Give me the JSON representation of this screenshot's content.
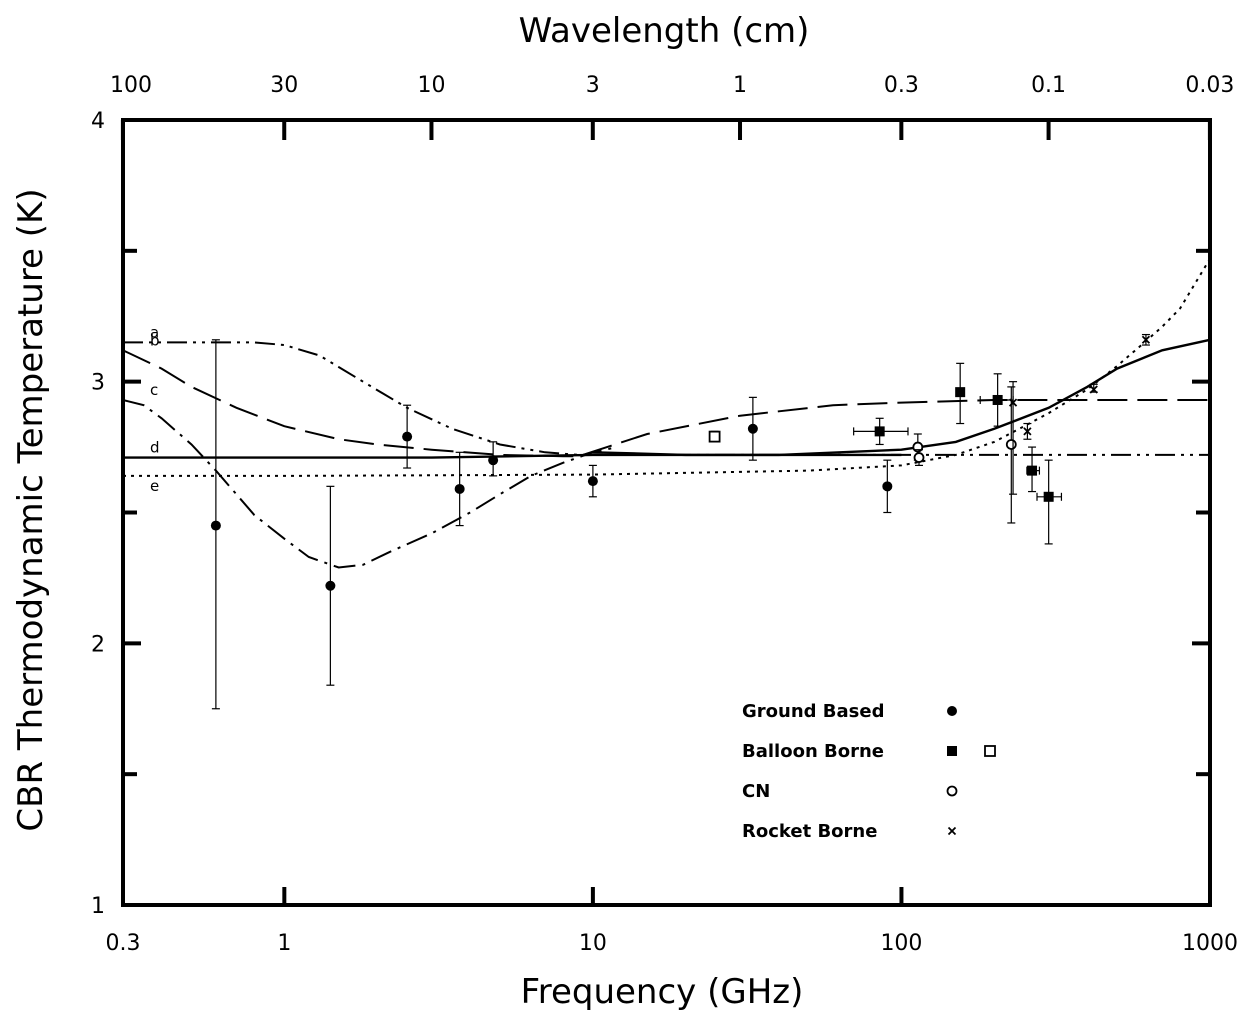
{
  "chart_data": {
    "type": "scatter",
    "xlabel": "Frequency (GHz)",
    "x2label": "Wavelength (cm)",
    "ylabel": "CBR Thermodynamic Temperature (K)",
    "x_scale": "log",
    "xlim": [
      0.3,
      1000
    ],
    "ylim": [
      1,
      4
    ],
    "x_ticks": [
      0.3,
      1,
      10,
      100,
      1000
    ],
    "x_tick_labels": [
      "0.3",
      "1",
      "10",
      "100",
      "1000"
    ],
    "x2_ticks_cm": [
      100,
      30,
      10,
      3,
      1,
      0.3,
      0.1,
      0.03
    ],
    "x2_tick_labels": [
      "100",
      "30",
      "10",
      "3",
      "1",
      "0.3",
      "0.1",
      "0.03"
    ],
    "y_ticks": [
      1,
      2,
      3,
      4
    ],
    "y_tick_labels": [
      "1",
      "2",
      "3",
      "4"
    ],
    "grid": false,
    "legend_position": "bottom-right",
    "legend": [
      {
        "label": "Ground Based",
        "symbols": [
          "filled-circle"
        ]
      },
      {
        "label": "Balloon Borne",
        "symbols": [
          "filled-square",
          "open-square"
        ]
      },
      {
        "label": "CN",
        "symbols": [
          "open-circle"
        ]
      },
      {
        "label": "Rocket Borne",
        "symbols": [
          "cross"
        ]
      }
    ],
    "curves": [
      {
        "label": "a",
        "style": "dash-dot-dot",
        "x": [
          0.3,
          0.4,
          0.6,
          0.8,
          1.0,
          1.3,
          1.8,
          2.5,
          3.5,
          5,
          7,
          9,
          12,
          20,
          50,
          200,
          1000
        ],
        "y": [
          3.15,
          3.15,
          3.15,
          3.15,
          3.14,
          3.1,
          3.0,
          2.9,
          2.82,
          2.76,
          2.73,
          2.72,
          2.72,
          2.72,
          2.72,
          2.72,
          2.72
        ]
      },
      {
        "label": "b",
        "style": "long-dash",
        "x": [
          0.3,
          0.4,
          0.5,
          0.7,
          1.0,
          1.5,
          2.0,
          3.0,
          5,
          8,
          9,
          15,
          30,
          60,
          100,
          200,
          400,
          1000
        ],
        "y": [
          3.12,
          3.05,
          2.98,
          2.9,
          2.83,
          2.78,
          2.76,
          2.74,
          2.72,
          2.715,
          2.715,
          2.8,
          2.87,
          2.91,
          2.92,
          2.93,
          2.93,
          2.93
        ]
      },
      {
        "label": "c",
        "style": "dash-dot",
        "x": [
          0.3,
          0.35,
          0.4,
          0.5,
          0.6,
          0.8,
          1.0,
          1.2,
          1.5,
          1.8,
          2.2,
          3,
          4,
          5,
          6.3,
          8,
          10,
          12
        ],
        "y": [
          2.93,
          2.91,
          2.86,
          2.76,
          2.66,
          2.49,
          2.4,
          2.33,
          2.29,
          2.3,
          2.35,
          2.42,
          2.5,
          2.57,
          2.64,
          2.69,
          2.73,
          2.75
        ]
      },
      {
        "label": "",
        "style": "solid",
        "x": [
          10,
          20,
          40,
          100,
          150,
          200,
          300,
          400,
          500,
          700,
          1000
        ],
        "y": [
          2.73,
          2.72,
          2.72,
          2.74,
          2.77,
          2.82,
          2.9,
          2.98,
          3.05,
          3.12,
          3.16
        ]
      },
      {
        "label": "d",
        "style": "solid",
        "x": [
          0.3,
          1,
          3,
          10,
          30,
          100
        ],
        "y": [
          2.71,
          2.71,
          2.71,
          2.72,
          2.72,
          2.72
        ]
      },
      {
        "label": "e",
        "style": "dotted",
        "x": [
          0.3,
          1,
          10,
          50,
          100,
          150,
          200,
          250,
          300,
          400,
          500,
          600,
          700,
          800,
          1000
        ],
        "y": [
          2.64,
          2.64,
          2.645,
          2.66,
          2.68,
          2.72,
          2.77,
          2.83,
          2.88,
          2.97,
          3.06,
          3.14,
          3.21,
          3.28,
          3.47
        ]
      }
    ],
    "points": [
      {
        "series": "Ground Based",
        "marker": "filled-circle",
        "x": 0.6,
        "y": 2.45,
        "yerr_low": 1.75,
        "yerr_high": 3.16
      },
      {
        "series": "Ground Based",
        "marker": "filled-circle",
        "x": 1.41,
        "y": 2.22,
        "yerr_low": 1.84,
        "yerr_high": 2.6
      },
      {
        "series": "Ground Based",
        "marker": "filled-circle",
        "x": 2.5,
        "y": 2.79,
        "yerr_low": 2.67,
        "yerr_high": 2.91
      },
      {
        "series": "Ground Based",
        "marker": "filled-circle",
        "x": 3.7,
        "y": 2.59,
        "yerr_low": 2.45,
        "yerr_high": 2.73
      },
      {
        "series": "Ground Based",
        "marker": "filled-circle",
        "x": 4.75,
        "y": 2.7,
        "yerr_low": 2.64,
        "yerr_high": 2.77
      },
      {
        "series": "Ground Based",
        "marker": "filled-circle",
        "x": 10,
        "y": 2.62,
        "yerr_low": 2.56,
        "yerr_high": 2.68
      },
      {
        "series": "Ground Based",
        "marker": "filled-circle",
        "x": 33,
        "y": 2.82,
        "yerr_low": 2.7,
        "yerr_high": 2.94
      },
      {
        "series": "Ground Based",
        "marker": "filled-circle",
        "x": 90,
        "y": 2.6,
        "yerr_low": 2.5,
        "yerr_high": 2.7
      },
      {
        "series": "Balloon Borne",
        "marker": "open-square",
        "x": 24.8,
        "y": 2.79,
        "yerr_low": 2.77,
        "yerr_high": 2.81
      },
      {
        "series": "Balloon Borne",
        "marker": "filled-square",
        "x": 85,
        "y": 2.81,
        "yerr_low": 2.76,
        "yerr_high": 2.86,
        "xerr_low": 70,
        "xerr_high": 105
      },
      {
        "series": "Balloon Borne",
        "marker": "filled-square",
        "x": 155,
        "y": 2.96,
        "yerr_low": 2.84,
        "yerr_high": 3.07
      },
      {
        "series": "Balloon Borne",
        "marker": "filled-square",
        "x": 205,
        "y": 2.93,
        "yerr_low": 2.83,
        "yerr_high": 3.03,
        "xerr_low": 180,
        "xerr_high": 230
      },
      {
        "series": "Balloon Borne",
        "marker": "filled-square",
        "x": 265,
        "y": 2.66,
        "yerr_low": 2.58,
        "yerr_high": 2.75,
        "xerr_low": 255,
        "xerr_high": 280
      },
      {
        "series": "Balloon Borne",
        "marker": "filled-square",
        "x": 300,
        "y": 2.56,
        "yerr_low": 2.38,
        "yerr_high": 2.7,
        "xerr_low": 275,
        "xerr_high": 330
      },
      {
        "series": "CN",
        "marker": "open-circle",
        "x": 113,
        "y": 2.75,
        "yerr_low": 2.7,
        "yerr_high": 2.8
      },
      {
        "series": "CN",
        "marker": "open-circle",
        "x": 114,
        "y": 2.71,
        "yerr_low": 2.68,
        "yerr_high": 2.74
      },
      {
        "series": "CN",
        "marker": "open-circle",
        "x": 227,
        "y": 2.76,
        "yerr_low": 2.46,
        "yerr_high": 2.98
      },
      {
        "series": "Rocket Borne",
        "marker": "cross",
        "x": 230,
        "y": 2.92,
        "yerr_low": 2.57,
        "yerr_high": 3.0
      },
      {
        "series": "Rocket Borne",
        "marker": "cross",
        "x": 256,
        "y": 2.81,
        "yerr_low": 2.78,
        "yerr_high": 2.84
      },
      {
        "series": "Rocket Borne",
        "marker": "cross",
        "x": 420,
        "y": 2.97,
        "yerr_low": 2.96,
        "yerr_high": 2.99
      },
      {
        "series": "Rocket Borne",
        "marker": "cross",
        "x": 620,
        "y": 3.16,
        "yerr_low": 3.14,
        "yerr_high": 3.18
      }
    ]
  }
}
